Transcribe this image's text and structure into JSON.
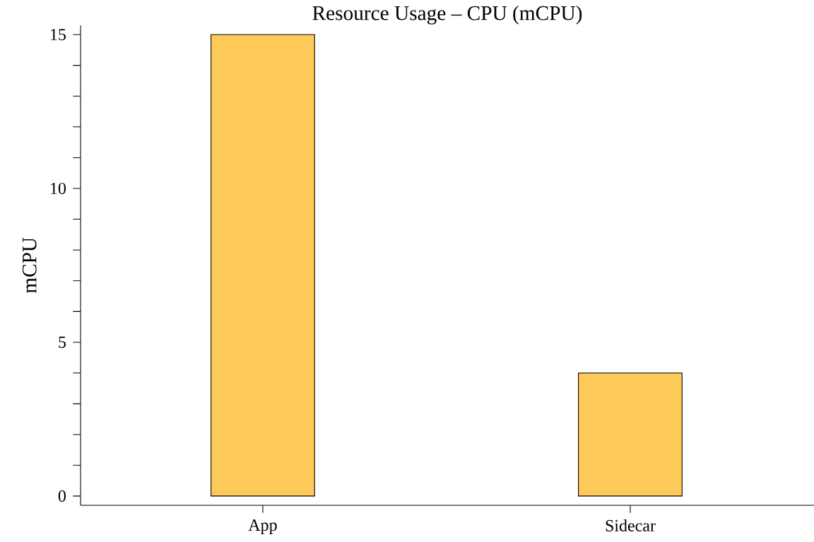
{
  "chart_data": {
    "type": "bar",
    "title": "Resource Usage – CPU (mCPU)",
    "ylabel": "mCPU",
    "categories": [
      "App",
      "Sidecar"
    ],
    "values": [
      15,
      4
    ],
    "color": "#fdca5a",
    "ylim": [
      -0.3,
      15.3
    ],
    "yticks": [
      0,
      {
        "value": 1,
        "label": null
      },
      {
        "value": 2,
        "label": null
      },
      {
        "value": 3,
        "label": null
      },
      {
        "value": 4,
        "label": null
      },
      5,
      {
        "value": 6,
        "label": null
      },
      {
        "value": 7,
        "label": null
      },
      {
        "value": 8,
        "label": null
      },
      {
        "value": 9,
        "label": null
      },
      10,
      {
        "value": 11,
        "label": null
      },
      {
        "value": 12,
        "label": null
      },
      {
        "value": 13,
        "label": null
      },
      {
        "value": 14,
        "label": null
      },
      15
    ],
    "grid": false
  }
}
